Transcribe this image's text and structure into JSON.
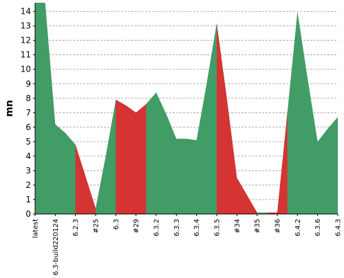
{
  "chart_data": {
    "type": "area",
    "title": "",
    "xlabel": "",
    "ylabel": "mn",
    "ylim": [
      0,
      14.6
    ],
    "yticks": [
      0,
      1,
      2,
      3,
      4,
      5,
      6,
      7,
      8,
      9,
      10,
      11,
      12,
      13,
      14
    ],
    "grid": true,
    "categories": [
      "latest",
      "",
      "6.3-build220124",
      "",
      "6.2.3",
      "",
      "#25",
      "",
      "6.3",
      "",
      "#29",
      "",
      "6.3.2",
      "",
      "6.3.3",
      "",
      "6.3.4",
      "",
      "6.3.5",
      "",
      "#34",
      "",
      "#35",
      "",
      "#36",
      "",
      "6.4.2",
      "",
      "6.3.6",
      "",
      "6.4.3"
    ],
    "series": [
      {
        "values": [
          14.6,
          14.6,
          6.2,
          5.6,
          4.8,
          2.6,
          0.4,
          4.0,
          7.9,
          7.5,
          7.0,
          7.6,
          8.4,
          6.9,
          5.2,
          5.2,
          5.1,
          9.0,
          13.2,
          8.0,
          2.5,
          1.3,
          0.1,
          0.1,
          0.1,
          7.0,
          14.0,
          9.4,
          5.0,
          5.9,
          6.7
        ]
      }
    ],
    "colors": {
      "positive": "#419c65",
      "negative": "#d63333",
      "grid": "#999999",
      "axis": "#000000"
    }
  }
}
